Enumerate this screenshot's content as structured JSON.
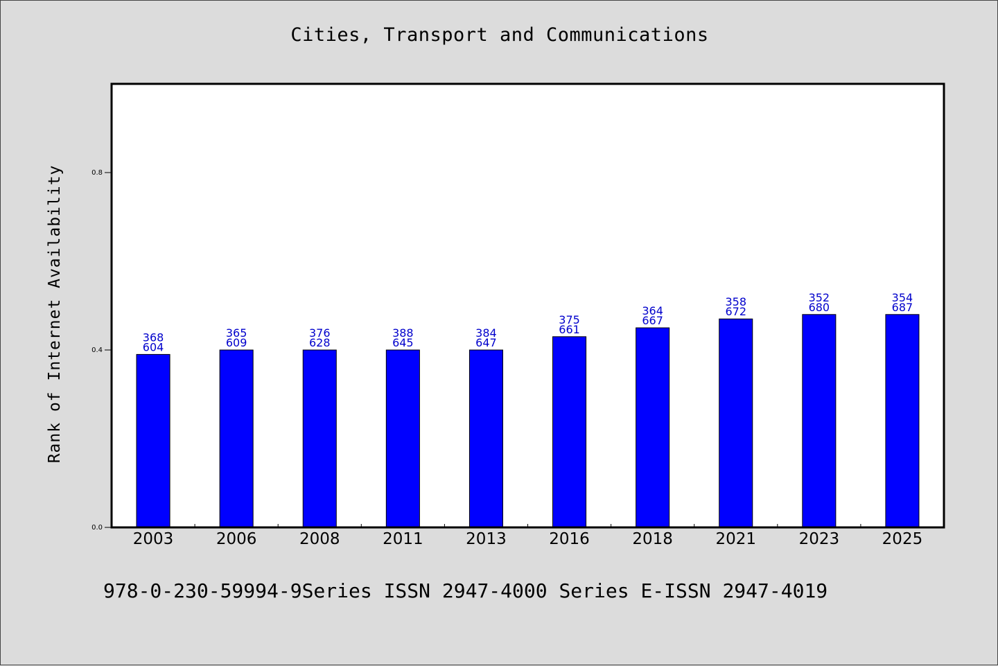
{
  "chart_data": {
    "type": "bar",
    "title": "Cities, Transport and Communications",
    "xlabel": "",
    "ylabel": "Rank of Internet Availability",
    "ylim": [
      0,
      1.0
    ],
    "yticks": [
      0.0,
      0.4,
      0.8
    ],
    "ytick_labels": [
      "0.0",
      "0.4",
      "0.8"
    ],
    "categories": [
      "2003",
      "2006",
      "2008",
      "2011",
      "2013",
      "2016",
      "2018",
      "2021",
      "2023",
      "2025"
    ],
    "values": [
      0.39,
      0.4,
      0.4,
      0.4,
      0.4,
      0.43,
      0.45,
      0.47,
      0.48,
      0.48
    ],
    "annotations": [
      [
        "368",
        "604"
      ],
      [
        "365",
        "609"
      ],
      [
        "376",
        "628"
      ],
      [
        "388",
        "645"
      ],
      [
        "384",
        "647"
      ],
      [
        "375",
        "661"
      ],
      [
        "364",
        "667"
      ],
      [
        "358",
        "672"
      ],
      [
        "352",
        "680"
      ],
      [
        "354",
        "687"
      ]
    ],
    "bar_color": "#0000ff",
    "annotation_color": "#0000cc",
    "background": "#dcdcdc",
    "plot_background": "#ffffff",
    "grid": false,
    "legend": "none"
  },
  "footer": {
    "text": "978-0-230-59994-9Series ISSN 2947-4000 Series E-ISSN 2947-4019"
  }
}
